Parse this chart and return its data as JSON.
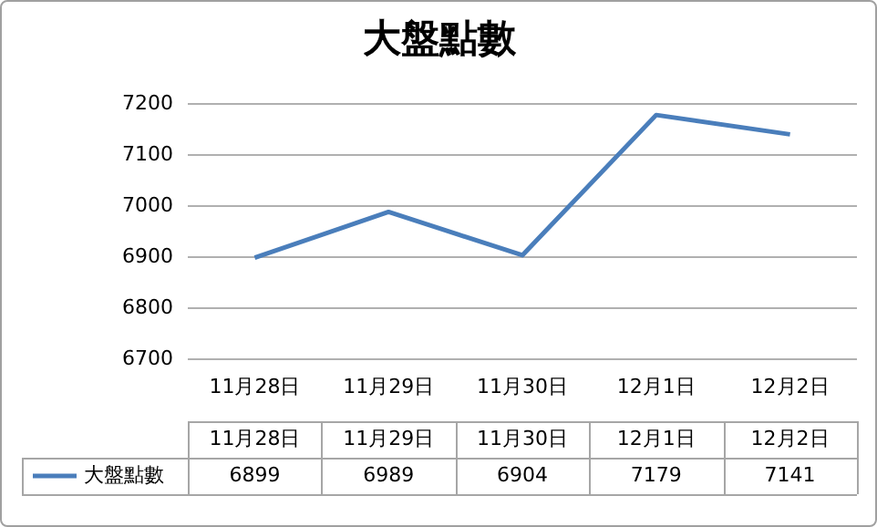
{
  "chart_data": {
    "type": "line",
    "title": "大盤點數",
    "categories": [
      "11月28日",
      "11月29日",
      "11月30日",
      "12月1日",
      "12月2日"
    ],
    "series": [
      {
        "name": "大盤點數",
        "color": "#4a7ebb",
        "values": [
          6899,
          6989,
          6904,
          7179,
          7141
        ]
      }
    ],
    "ylim": [
      6700,
      7200
    ],
    "yticks": [
      6700,
      6800,
      6900,
      7000,
      7100,
      7200
    ],
    "grid": "y",
    "legend": "bottom",
    "data_labels": true,
    "marker": "none",
    "line_style": "solid"
  }
}
